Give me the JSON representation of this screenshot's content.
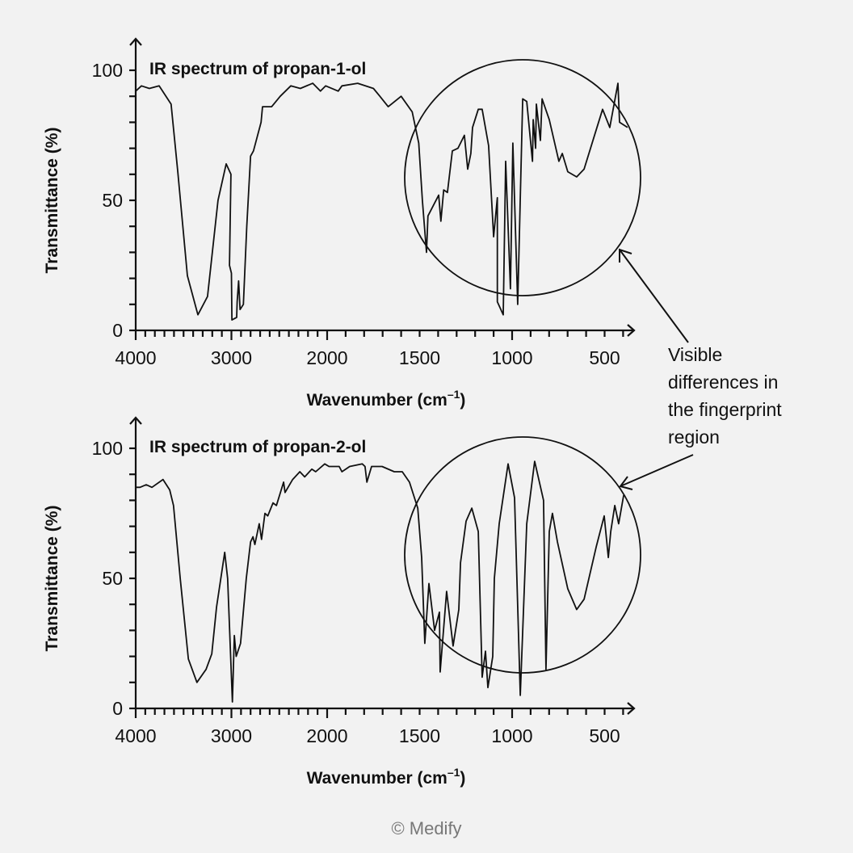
{
  "chart_data": [
    {
      "type": "line",
      "title": "IR spectrum of propan-1-ol",
      "xlabel": "Wavenumber (cm",
      "xlabel_sup": "–1",
      "xlabel_end": ")",
      "ylabel": "Transmittance (%)",
      "xlim": [
        4000,
        350
      ],
      "ylim": [
        0,
        100
      ],
      "x_ticks": [
        "4000",
        "3000",
        "2000",
        "1500",
        "1000",
        "500"
      ],
      "x_tick_values": [
        4000,
        3000,
        2000,
        1500,
        1000,
        500
      ],
      "y_ticks": [
        "0",
        "50",
        "100"
      ],
      "y_tick_values": [
        0,
        50,
        100
      ],
      "x_scale_break": 2000,
      "series": [
        {
          "name": "propan-1-ol",
          "x": [
            4000,
            3940,
            3857,
            3755,
            3630,
            3560,
            3460,
            3350,
            3250,
            3140,
            3055,
            3005,
            3020,
            3000,
            2995,
            2945,
            2940,
            2925,
            2910,
            2875,
            2840,
            2800,
            2770,
            2690,
            2675,
            2630,
            2580,
            2490,
            2380,
            2280,
            2150,
            2070,
            2015,
            1940,
            1920,
            1835,
            1750,
            1715,
            1670,
            1600,
            1540,
            1505,
            1485,
            1463,
            1455,
            1397,
            1385,
            1370,
            1350,
            1323,
            1293,
            1258,
            1240,
            1223,
            1214,
            1183,
            1162,
            1127,
            1100,
            1080,
            1080,
            1048,
            1035,
            1009,
            996,
            970,
            943,
            921,
            890,
            886,
            873,
            869,
            847,
            838,
            799,
            747,
            729,
            699,
            651,
            611,
            550,
            511,
            472,
            428,
            419,
            376
          ],
          "y": [
            92,
            94,
            93,
            94,
            87,
            61,
            21,
            6,
            13,
            50,
            64,
            60,
            25,
            22,
            4,
            5,
            11,
            19,
            8,
            10,
            40,
            67,
            69,
            80,
            86,
            86,
            86,
            90,
            94,
            93,
            95,
            92,
            94,
            92,
            94,
            95,
            93,
            90,
            86,
            90,
            84,
            72,
            50,
            30,
            44,
            52,
            42,
            54,
            53,
            69,
            70,
            75,
            62,
            68,
            78,
            85,
            85,
            71,
            36,
            51,
            11,
            6,
            65,
            16,
            72,
            10,
            89,
            88,
            65,
            81,
            70,
            87,
            73,
            89,
            81,
            65,
            68,
            61,
            59,
            62,
            76,
            85,
            78,
            95,
            80,
            78
          ]
        }
      ],
      "highlight": "fingerprint region circled"
    },
    {
      "type": "line",
      "title": "IR spectrum of propan-2-ol",
      "xlabel": "Wavenumber (cm",
      "xlabel_sup": "–1",
      "xlabel_end": ")",
      "ylabel": "Transmittance (%)",
      "xlim": [
        4000,
        350
      ],
      "ylim": [
        0,
        100
      ],
      "x_ticks": [
        "4000",
        "3000",
        "2000",
        "1500",
        "1000",
        "500"
      ],
      "x_tick_values": [
        4000,
        3000,
        2000,
        1500,
        1000,
        500
      ],
      "y_ticks": [
        "0",
        "50",
        "100"
      ],
      "y_tick_values": [
        0,
        50,
        100
      ],
      "x_scale_break": 2000,
      "series": [
        {
          "name": "propan-2-ol",
          "x": [
            4000,
            3955,
            3890,
            3830,
            3715,
            3645,
            3605,
            3535,
            3450,
            3360,
            3265,
            3205,
            3155,
            3070,
            3040,
            2990,
            2970,
            2950,
            2905,
            2845,
            2800,
            2775,
            2755,
            2710,
            2685,
            2650,
            2620,
            2565,
            2530,
            2455,
            2440,
            2360,
            2285,
            2235,
            2160,
            2120,
            2025,
            1990,
            1935,
            1920,
            1878,
            1810,
            1795,
            1785,
            1760,
            1703,
            1637,
            1594,
            1555,
            1510,
            1489,
            1472,
            1450,
            1419,
            1393,
            1389,
            1354,
            1319,
            1288,
            1279,
            1249,
            1218,
            1183,
            1162,
            1144,
            1131,
            1105,
            1096,
            1070,
            1022,
            987,
            956,
            921,
            878,
            830,
            817,
            799,
            782,
            755,
            699,
            651,
            611,
            546,
            502,
            480,
            467,
            445,
            424,
            397
          ],
          "y": [
            85,
            85,
            86,
            85,
            88,
            84,
            78,
            50,
            19,
            10,
            15,
            21,
            39,
            60,
            50,
            2.5,
            28,
            20,
            25,
            50,
            64,
            66,
            63,
            71,
            65,
            75,
            74,
            79,
            78,
            87,
            83,
            88,
            91,
            89,
            92,
            91,
            94,
            93,
            93,
            91,
            93,
            94,
            93,
            87,
            93,
            93,
            91,
            91,
            87,
            77,
            58,
            25,
            48,
            30,
            37,
            14,
            45,
            24,
            38,
            56,
            72,
            77,
            68,
            12,
            22,
            8,
            20,
            50,
            71,
            94,
            81,
            5,
            71,
            95,
            80,
            15,
            68,
            75,
            64,
            46,
            38,
            42,
            62,
            74,
            58,
            68,
            78,
            71,
            82
          ]
        }
      ],
      "highlight": "fingerprint region circled"
    }
  ],
  "annotation": {
    "lines": [
      "Visible",
      "differences in",
      "the fingerprint",
      "region"
    ]
  },
  "copyright": "© Medify"
}
